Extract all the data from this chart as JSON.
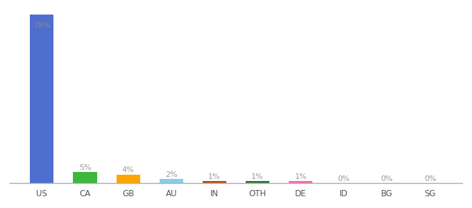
{
  "categories": [
    "US",
    "CA",
    "GB",
    "AU",
    "IN",
    "OTH",
    "DE",
    "ID",
    "BG",
    "SG"
  ],
  "values": [
    78,
    5,
    4,
    2,
    1,
    1,
    1,
    0.15,
    0.15,
    0.15
  ],
  "display_values": [
    78,
    5,
    4,
    2,
    1,
    1,
    1,
    0,
    0,
    0
  ],
  "labels": [
    "78%",
    "5%",
    "4%",
    "2%",
    "1%",
    "1%",
    "1%",
    "0%",
    "0%",
    "0%"
  ],
  "colors": [
    "#4f6fce",
    "#3cb83c",
    "#ffa500",
    "#87ceeb",
    "#b8521e",
    "#2e7d32",
    "#ff69b4",
    "#4f6fce",
    "#4f6fce",
    "#4f6fce"
  ],
  "background_color": "#ffffff",
  "label_color": "#999999",
  "label_color_us": "#888888",
  "figsize": [
    6.8,
    3.0
  ],
  "dpi": 100,
  "ylim": [
    0,
    82
  ],
  "bar_width": 0.55
}
